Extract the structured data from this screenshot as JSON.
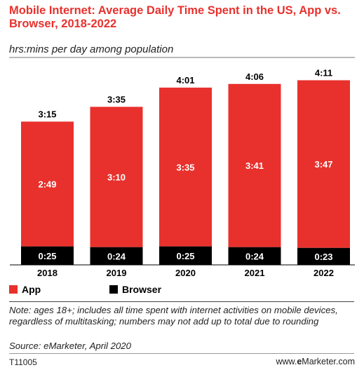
{
  "title": "Mobile Internet: Average Daily Time Spent in the US, App vs. Browser, 2018-2022",
  "subtitle": "hrs:mins per day among population",
  "note": "Note: ages 18+; includes all time spent with internet activities on mobile devices, regardless of multitasking; numbers may not add up to total due to rounding",
  "source": "Source: eMarketer, April 2020",
  "footer": {
    "code": "T11005",
    "brand_prefix": "www.",
    "brand_bold": "e",
    "brand_rest": "Marketer.com"
  },
  "colors": {
    "app": "#e8312d",
    "browser": "#000000",
    "title": "#e8312d"
  },
  "chart_data": {
    "type": "bar",
    "stacked": true,
    "unit": "hrs:mins",
    "categories": [
      "2018",
      "2019",
      "2020",
      "2021",
      "2022"
    ],
    "series": [
      {
        "name": "App",
        "values": [
          169,
          190,
          215,
          221,
          227
        ],
        "labels": [
          "2:49",
          "3:10",
          "3:35",
          "3:41",
          "3:47"
        ]
      },
      {
        "name": "Browser",
        "values": [
          25,
          24,
          25,
          24,
          23
        ],
        "labels": [
          "0:25",
          "0:24",
          "0:25",
          "0:24",
          "0:23"
        ]
      }
    ],
    "totals": [
      195,
      215,
      241,
      246,
      251
    ],
    "total_labels": [
      "3:15",
      "3:35",
      "4:01",
      "4:06",
      "4:11"
    ],
    "legend_position": "bottom-left",
    "grid": false
  }
}
